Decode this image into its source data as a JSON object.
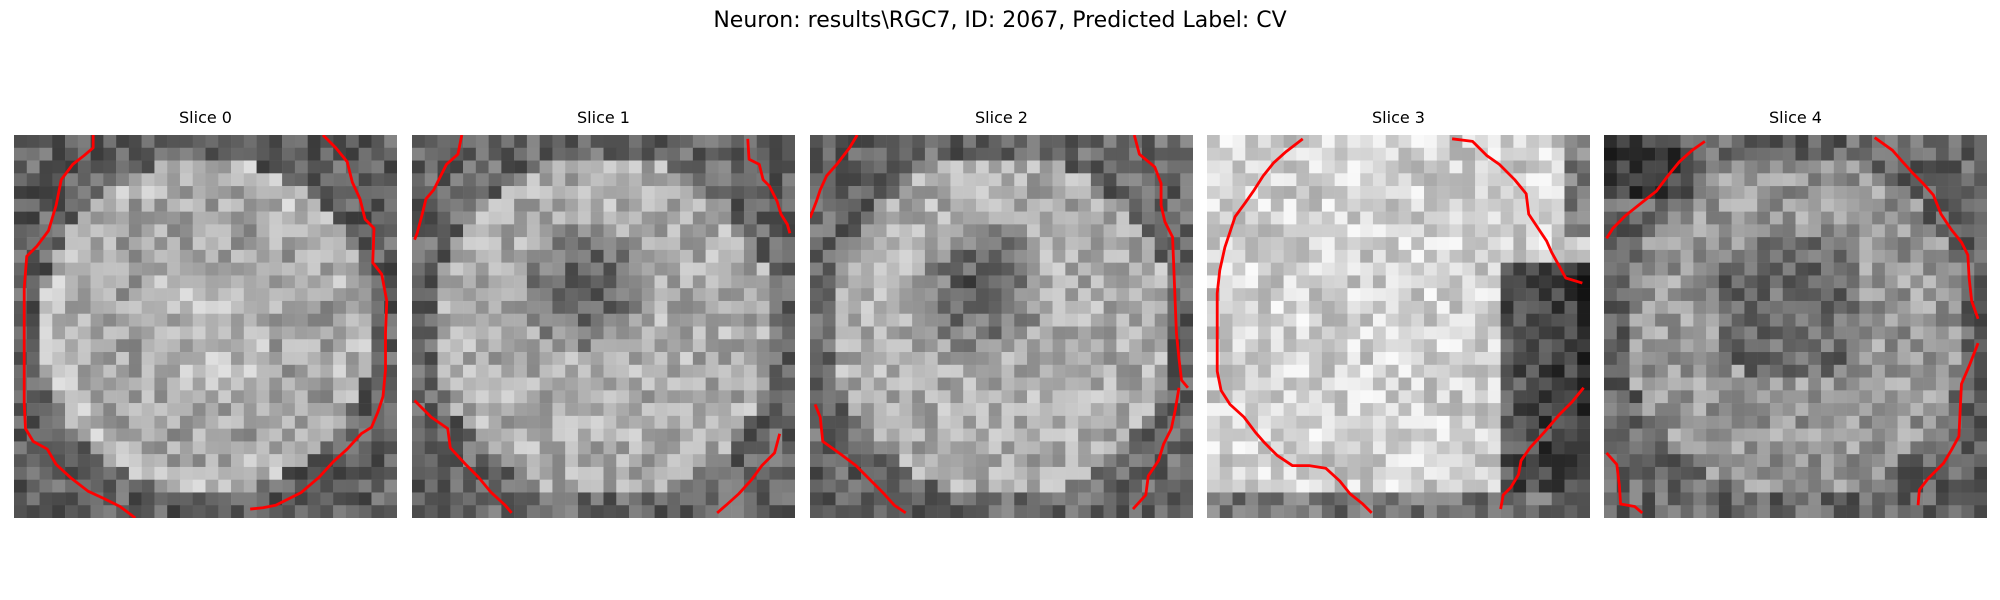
{
  "figure": {
    "title": "Neuron: results\\RGC7, ID: 2067, Predicted Label: CV",
    "contour_color": "#ff0000"
  },
  "slices": [
    {
      "title": "Slice 0",
      "pattern": "bright-disc",
      "seed": 11
    },
    {
      "title": "Slice 1",
      "pattern": "ring-dark-center",
      "seed": 23
    },
    {
      "title": "Slice 2",
      "pattern": "ring-dark-center",
      "seed": 37
    },
    {
      "title": "Slice 3",
      "pattern": "bright-blob-right-shadow",
      "seed": 41
    },
    {
      "title": "Slice 4",
      "pattern": "textured-dark-center",
      "seed": 59
    }
  ]
}
